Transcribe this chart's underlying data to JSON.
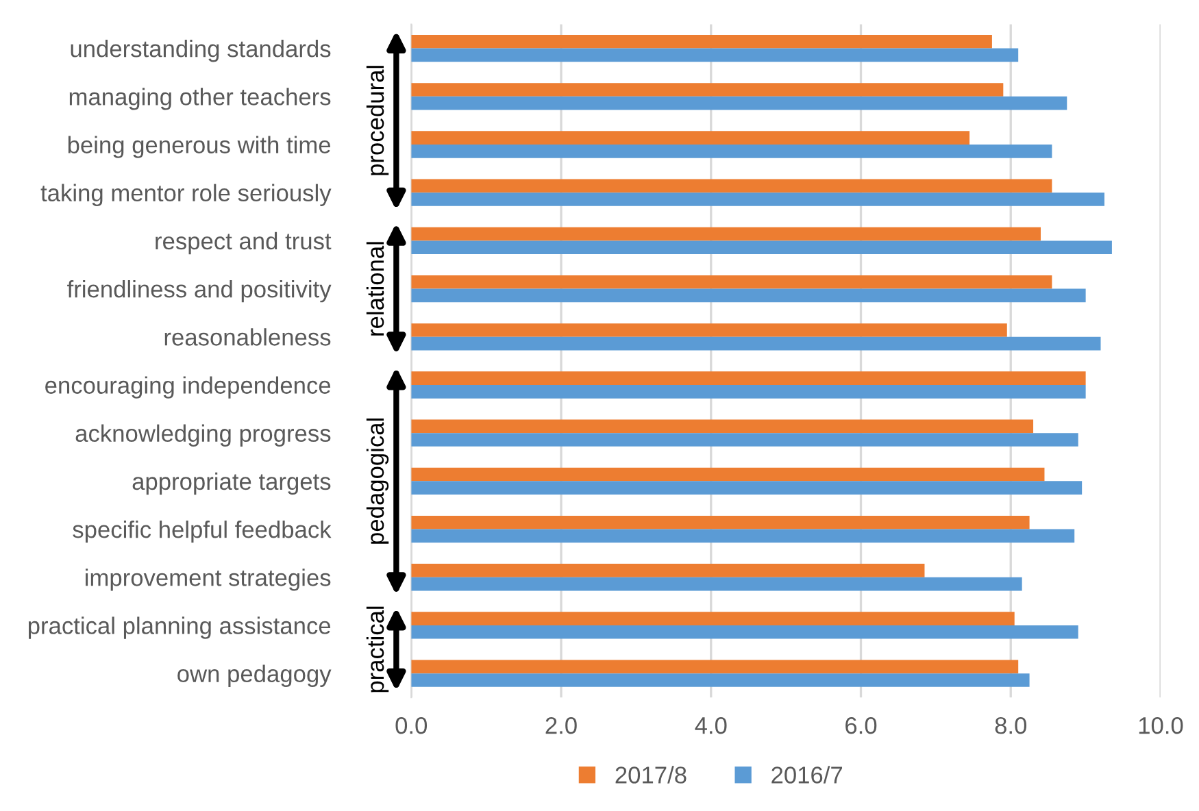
{
  "chart_data": {
    "type": "bar",
    "orientation": "horizontal",
    "categories": [
      "understanding standards",
      "managing other teachers",
      "being generous with time",
      "taking mentor role seriously",
      "respect and trust",
      "friendliness and positivity",
      "reasonableness",
      "encouraging independence",
      "acknowledging progress",
      "appropriate targets",
      "specific helpful feedback",
      "improvement strategies",
      "practical planning assistance",
      "own pedagogy"
    ],
    "series": [
      {
        "name": "2017/8",
        "color": "#ed7d31",
        "values": [
          7.75,
          7.9,
          7.45,
          8.55,
          8.4,
          8.55,
          7.95,
          9.0,
          8.3,
          8.45,
          8.25,
          6.85,
          8.05,
          8.1
        ]
      },
      {
        "name": "2016/7",
        "color": "#5b9bd5",
        "values": [
          8.1,
          8.75,
          8.55,
          9.25,
          9.35,
          9.0,
          9.2,
          9.0,
          8.9,
          8.95,
          8.85,
          8.15,
          8.9,
          8.25
        ]
      }
    ],
    "xlim": [
      0,
      10
    ],
    "xticks": [
      {
        "value": 0,
        "label": "0.0"
      },
      {
        "value": 2,
        "label": "2.0"
      },
      {
        "value": 4,
        "label": "4.0"
      },
      {
        "value": 6,
        "label": "6.0"
      },
      {
        "value": 8,
        "label": "8.0"
      },
      {
        "value": 10,
        "label": "10.0"
      }
    ],
    "grid": "x",
    "legend": "bottom",
    "annotations": [
      "procedural",
      "relational",
      "pedagogical",
      "practical"
    ]
  }
}
